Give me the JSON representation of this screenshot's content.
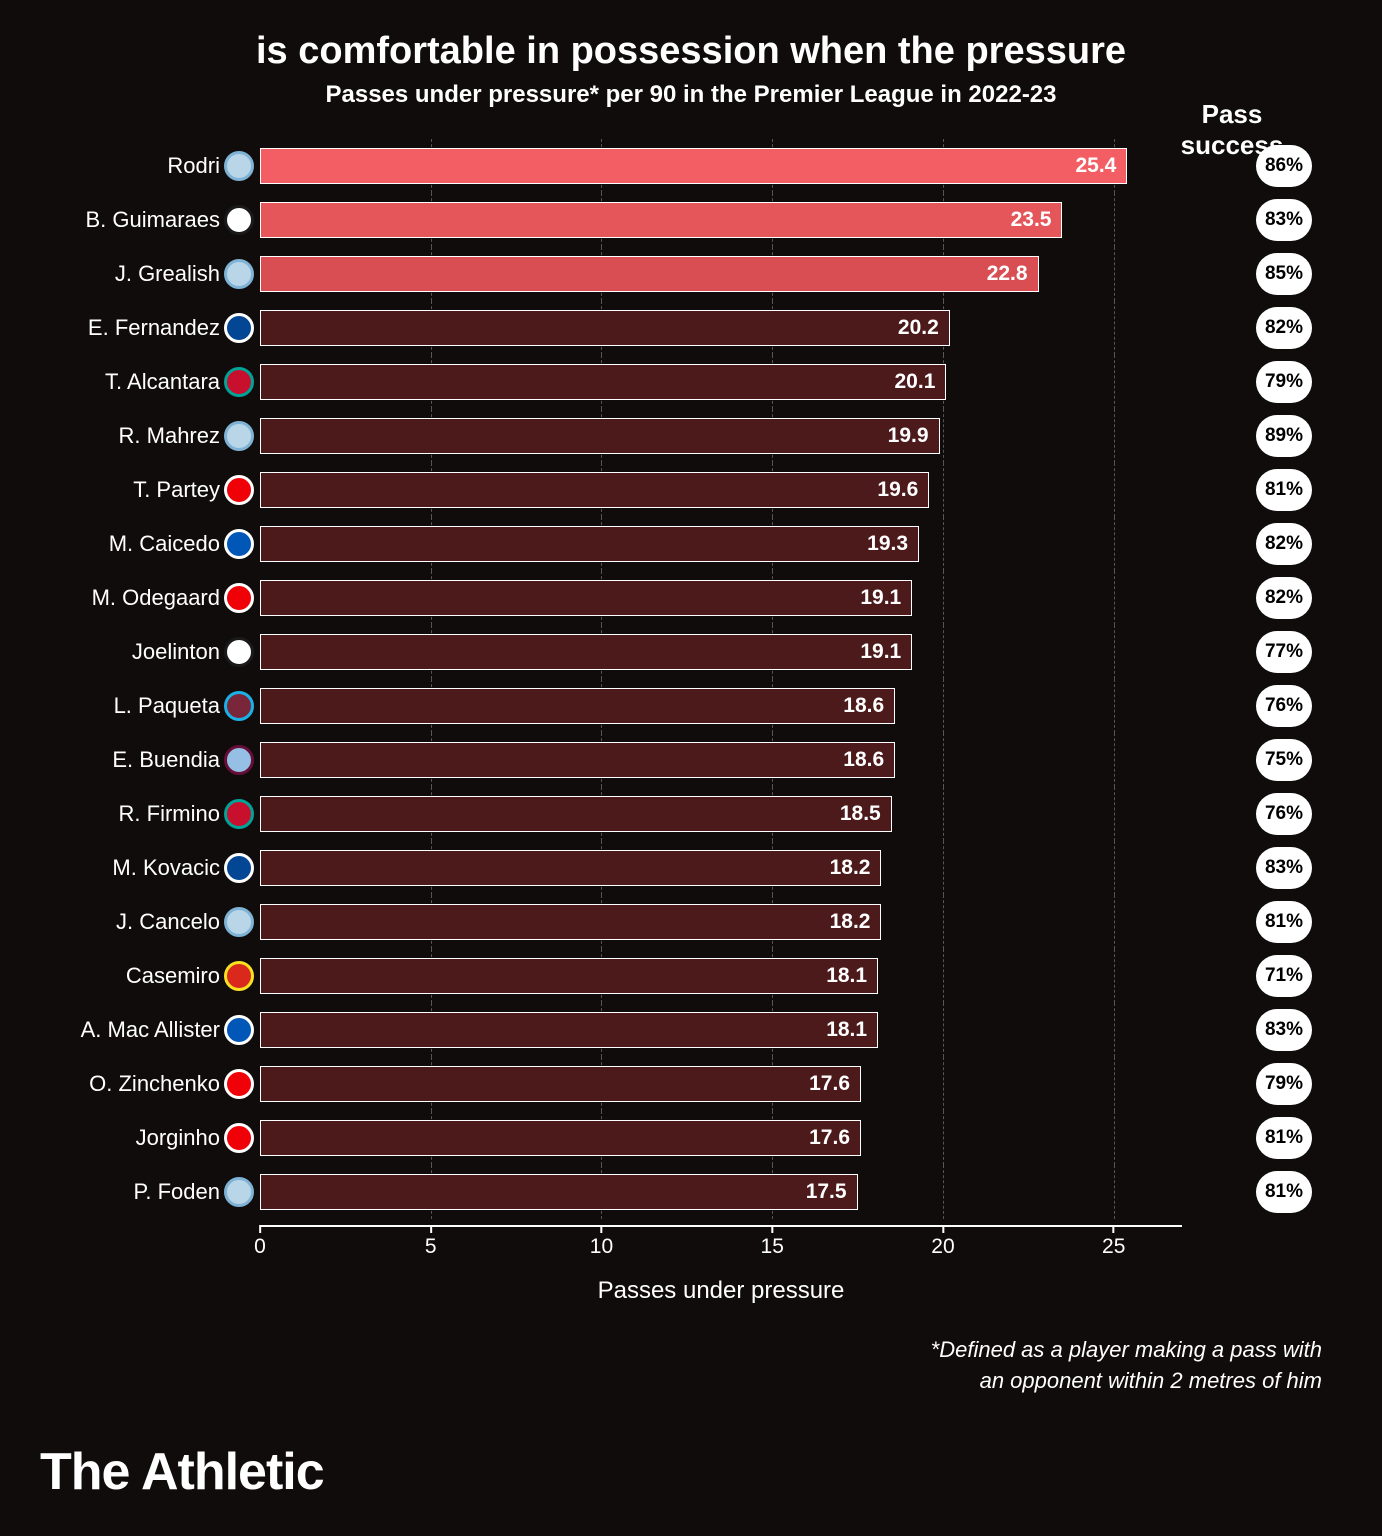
{
  "title": "is comfortable in possession when the pressure",
  "subtitle": "Passes under pressure* per 90 in the Premier League in 2022-23",
  "success_header": "Pass success",
  "x_label": "Passes under pressure",
  "footnote_line1": "*Defined as a player making a pass with",
  "footnote_line2": "an opponent within 2 metres of him",
  "brand": "The Athletic",
  "chart": {
    "type": "bar",
    "xmin": 0,
    "xmax": 27,
    "xticks": [
      0,
      5,
      10,
      15,
      20,
      25
    ],
    "bar_border_color": "#ffffff",
    "grid_color": "#555555",
    "background_color": "#100c0c",
    "value_fontsize": 21,
    "label_fontsize": 22,
    "highlight_colors": [
      "#f25e63",
      "#e4565a",
      "#d94e53"
    ],
    "normal_color": "#4c1a1a",
    "players": [
      {
        "name": "Rodri",
        "value": 25.4,
        "success": "86%",
        "color": "#f25e63",
        "club_bg": "#b9d6e8",
        "club_ring": "#7fb3d5",
        "club_txt": "MCI"
      },
      {
        "name": "B. Guimaraes",
        "value": 23.5,
        "success": "83%",
        "color": "#e4565a",
        "club_bg": "#ffffff",
        "club_ring": "#1a1a1a",
        "club_txt": "NUFC"
      },
      {
        "name": "J. Grealish",
        "value": 22.8,
        "success": "85%",
        "color": "#d94e53",
        "club_bg": "#b9d6e8",
        "club_ring": "#7fb3d5",
        "club_txt": "MCI"
      },
      {
        "name": "E. Fernandez",
        "value": 20.2,
        "success": "82%",
        "color": "#4c1a1a",
        "club_bg": "#034694",
        "club_ring": "#ffffff",
        "club_txt": "CHE"
      },
      {
        "name": "T. Alcantara",
        "value": 20.1,
        "success": "79%",
        "color": "#4c1a1a",
        "club_bg": "#c8102e",
        "club_ring": "#00a398",
        "club_txt": "LFC"
      },
      {
        "name": "R. Mahrez",
        "value": 19.9,
        "success": "89%",
        "color": "#4c1a1a",
        "club_bg": "#b9d6e8",
        "club_ring": "#7fb3d5",
        "club_txt": "MCI"
      },
      {
        "name": "T. Partey",
        "value": 19.6,
        "success": "81%",
        "color": "#4c1a1a",
        "club_bg": "#ef0107",
        "club_ring": "#ffffff",
        "club_txt": "ARS"
      },
      {
        "name": "M. Caicedo",
        "value": 19.3,
        "success": "82%",
        "color": "#4c1a1a",
        "club_bg": "#0057b8",
        "club_ring": "#ffffff",
        "club_txt": "BHA"
      },
      {
        "name": "M. Odegaard",
        "value": 19.1,
        "success": "82%",
        "color": "#4c1a1a",
        "club_bg": "#ef0107",
        "club_ring": "#ffffff",
        "club_txt": "ARS"
      },
      {
        "name": "Joelinton",
        "value": 19.1,
        "success": "77%",
        "color": "#4c1a1a",
        "club_bg": "#ffffff",
        "club_ring": "#1a1a1a",
        "club_txt": "NUFC"
      },
      {
        "name": "L. Paqueta",
        "value": 18.6,
        "success": "76%",
        "color": "#4c1a1a",
        "club_bg": "#7a263a",
        "club_ring": "#1bb1e7",
        "club_txt": "WHU"
      },
      {
        "name": "E. Buendia",
        "value": 18.6,
        "success": "75%",
        "color": "#4c1a1a",
        "club_bg": "#95bfe5",
        "club_ring": "#670e36",
        "club_txt": "AVL"
      },
      {
        "name": "R. Firmino",
        "value": 18.5,
        "success": "76%",
        "color": "#4c1a1a",
        "club_bg": "#c8102e",
        "club_ring": "#00a398",
        "club_txt": "LFC"
      },
      {
        "name": "M. Kovacic",
        "value": 18.2,
        "success": "83%",
        "color": "#4c1a1a",
        "club_bg": "#034694",
        "club_ring": "#ffffff",
        "club_txt": "CHE"
      },
      {
        "name": "J. Cancelo",
        "value": 18.2,
        "success": "81%",
        "color": "#4c1a1a",
        "club_bg": "#b9d6e8",
        "club_ring": "#7fb3d5",
        "club_txt": "MCI"
      },
      {
        "name": "Casemiro",
        "value": 18.1,
        "success": "71%",
        "color": "#4c1a1a",
        "club_bg": "#da291c",
        "club_ring": "#fbe122",
        "club_txt": "MUN"
      },
      {
        "name": "A. Mac Allister",
        "value": 18.1,
        "success": "83%",
        "color": "#4c1a1a",
        "club_bg": "#0057b8",
        "club_ring": "#ffffff",
        "club_txt": "BHA"
      },
      {
        "name": "O. Zinchenko",
        "value": 17.6,
        "success": "79%",
        "color": "#4c1a1a",
        "club_bg": "#ef0107",
        "club_ring": "#ffffff",
        "club_txt": "ARS"
      },
      {
        "name": "Jorginho",
        "value": 17.6,
        "success": "81%",
        "color": "#4c1a1a",
        "club_bg": "#ef0107",
        "club_ring": "#ffffff",
        "club_txt": "ARS"
      },
      {
        "name": "P. Foden",
        "value": 17.5,
        "success": "81%",
        "color": "#4c1a1a",
        "club_bg": "#b9d6e8",
        "club_ring": "#7fb3d5",
        "club_txt": "MCI"
      }
    ]
  }
}
